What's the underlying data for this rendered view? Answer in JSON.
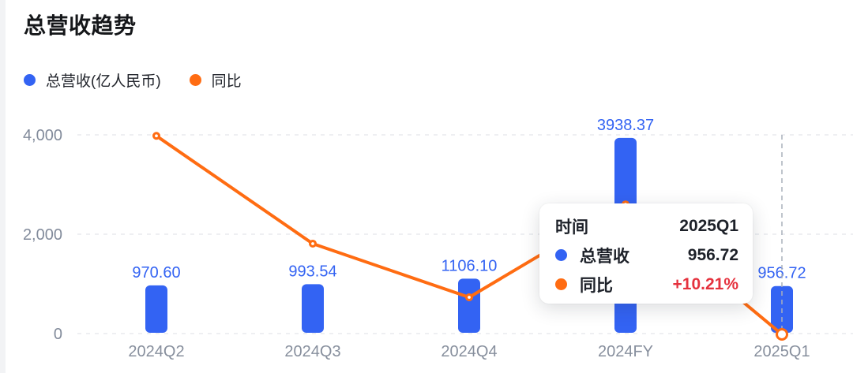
{
  "page": {
    "background": "#ffffff",
    "left_strip_color": "#f2f3f5"
  },
  "header": {
    "title": "总营收趋势"
  },
  "chart_data": {
    "type": "bar+line",
    "title": "总营收趋势",
    "categories": [
      "2024Q2",
      "2024Q3",
      "2024Q4",
      "2024FY",
      "2025Q1"
    ],
    "series": [
      {
        "name": "总营收(亿人民币)",
        "type": "bar",
        "axis": "left",
        "color": "#3363f3",
        "values": [
          970.6,
          993.54,
          1106.1,
          3938.37,
          956.72
        ],
        "value_labels": [
          "970.60",
          "993.54",
          "1106.10",
          "3938.37",
          "956.72"
        ],
        "value_label_color": "#3363f3"
      },
      {
        "name": "同比",
        "type": "line",
        "axis": "right-hidden",
        "color": "#ff6c12",
        "known_values": {
          "2025Q1": "+10.21%"
        },
        "y_left_axis_equivalent": [
          3980,
          1810,
          730,
          2600,
          -15
        ]
      }
    ],
    "left_axis": {
      "range": [
        0,
        4000
      ],
      "ticks": [
        0,
        2000,
        4000
      ],
      "tick_labels": [
        "0",
        "2,000",
        "4,000"
      ],
      "grid": "dashed"
    },
    "legend_position": "top-left",
    "hover": {
      "index": 4,
      "category": "2025Q1"
    }
  },
  "tooltip": {
    "header_label": "时间",
    "header_value": "2025Q1",
    "rows": [
      {
        "label": "总营收",
        "value": "956.72",
        "dot_color": "#3363f3",
        "value_color": "#1d2129"
      },
      {
        "label": "同比",
        "value": "+10.21%",
        "dot_color": "#ff6c12",
        "value_color": "#e5323e"
      }
    ]
  },
  "colors": {
    "axis_text": "#828b9b",
    "category_text": "#878f9d",
    "grid_line": "#e8eaee",
    "crosshair": "#a9b0bc",
    "positive_red": "#e5323e"
  }
}
